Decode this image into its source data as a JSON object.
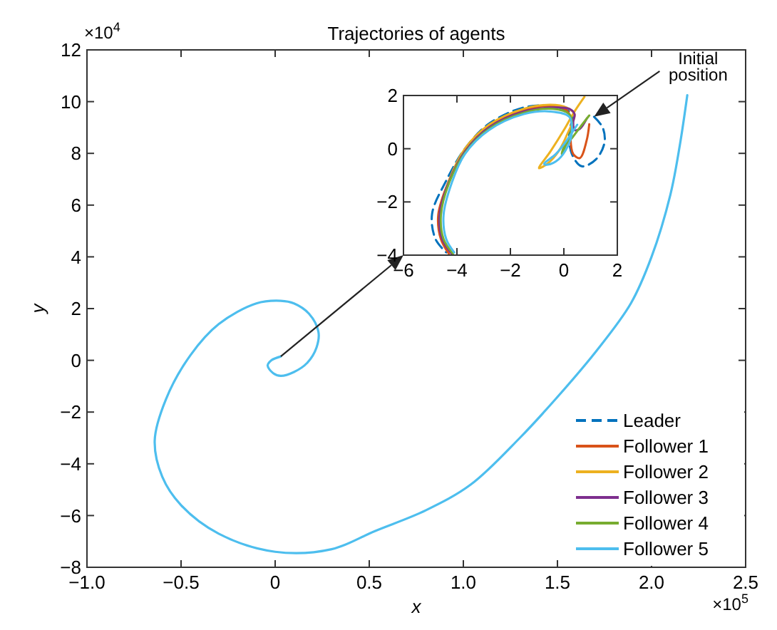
{
  "chart_data": [
    {
      "type": "line",
      "title": "Trajectories of agents",
      "xlabel": "x",
      "ylabel": "y",
      "xlim": [
        -1,
        2.5
      ],
      "xticks": [
        {
          "value": -1,
          "label": "−1.0"
        },
        {
          "value": -0.5,
          "label": "−0.5"
        },
        0,
        0.5,
        {
          "value": 1,
          "label": "1.0"
        },
        1.5,
        {
          "value": 2,
          "label": "2.0"
        },
        2.5
      ],
      "ylim": [
        -8,
        12
      ],
      "yticks": [
        {
          "value": -8,
          "label": "−8"
        },
        {
          "value": -6,
          "label": "−6"
        },
        {
          "value": -4,
          "label": "−4"
        },
        {
          "value": -2,
          "label": "−2"
        },
        0,
        2,
        4,
        6,
        8,
        10,
        12
      ],
      "annotations": [
        "×10$^{4}$",
        "×10$^{5}$"
      ],
      "legend": "bottom right",
      "grid": false,
      "x": [
        0.03,
        -0.02,
        -0.04,
        -0.01,
        0.03,
        0.1,
        0.17,
        0.22,
        0.23,
        0.18,
        0.1,
        0.03,
        -0.1,
        -0.3,
        -0.45,
        -0.58,
        -0.64,
        -0.6,
        -0.5,
        -0.3,
        0,
        0.3,
        0.53,
        0.8,
        1.04,
        1.3,
        1.49,
        1.7,
        1.89,
        2.0,
        2.1,
        2.15,
        2.19
      ],
      "series": [
        {
          "name": "Leader",
          "color": "#0072bd",
          "line_style": "dashed",
          "values": [
            null,
            null,
            null,
            null,
            null,
            null,
            null,
            null,
            null,
            null,
            null,
            null,
            null,
            null,
            null,
            null,
            null,
            null,
            null,
            null,
            null,
            null,
            null,
            null,
            null,
            null,
            null,
            null,
            null,
            null,
            null,
            null,
            null
          ]
        },
        {
          "name": "Follower 1",
          "color": "#d95319",
          "line_style": "solid",
          "values": [
            null,
            null,
            null,
            null,
            null,
            null,
            null,
            null,
            null,
            null,
            null,
            null,
            null,
            null,
            null,
            null,
            null,
            null,
            null,
            null,
            null,
            null,
            null,
            null,
            null,
            null,
            null,
            null,
            null,
            null,
            null,
            null,
            null
          ]
        },
        {
          "name": "Follower 2",
          "color": "#edb120",
          "line_style": "solid",
          "values": [
            null,
            null,
            null,
            null,
            null,
            null,
            null,
            null,
            null,
            null,
            null,
            null,
            null,
            null,
            null,
            null,
            null,
            null,
            null,
            null,
            null,
            null,
            null,
            null,
            null,
            null,
            null,
            null,
            null,
            null,
            null,
            null,
            null
          ]
        },
        {
          "name": "Follower 3",
          "color": "#7e2f8e",
          "line_style": "solid",
          "values": [
            null,
            null,
            null,
            null,
            null,
            null,
            null,
            null,
            null,
            null,
            null,
            null,
            null,
            null,
            null,
            null,
            null,
            null,
            null,
            null,
            null,
            null,
            null,
            null,
            null,
            null,
            null,
            null,
            null,
            null,
            null,
            null,
            null
          ]
        },
        {
          "name": "Follower 4",
          "color": "#77ac30",
          "line_style": "solid",
          "values": [
            null,
            null,
            null,
            null,
            null,
            null,
            null,
            null,
            null,
            null,
            null,
            null,
            null,
            null,
            null,
            null,
            null,
            null,
            null,
            null,
            null,
            null,
            null,
            null,
            null,
            null,
            null,
            null,
            null,
            null,
            null,
            null,
            null
          ]
        },
        {
          "name": "Follower 5",
          "color": "#4dbeee",
          "line_style": "solid",
          "values": [
            0.15,
            0.0,
            -0.2,
            -0.5,
            -0.6,
            -0.45,
            -0.1,
            0.5,
            1.1,
            1.8,
            2.2,
            2.3,
            2.2,
            1.4,
            0.2,
            -1.5,
            -3.1,
            -4.5,
            -5.6,
            -6.7,
            -7.4,
            -7.3,
            -6.6,
            -5.8,
            -4.8,
            -3.0,
            -1.5,
            0.3,
            2.2,
            4.0,
            6.4,
            8.3,
            10.25
          ]
        }
      ]
    },
    {
      "type": "line",
      "xlim": [
        -6,
        2
      ],
      "xticks": [
        {
          "value": -6,
          "label": "−6"
        },
        {
          "value": -4,
          "label": "−4"
        },
        {
          "value": -2,
          "label": "−2"
        },
        0,
        2
      ],
      "ylim": [
        -4,
        2
      ],
      "yticks": [
        {
          "value": -4,
          "label": "−4"
        },
        {
          "value": -2,
          "label": "−2"
        },
        0,
        2
      ],
      "annotations": [
        "Initial\nposition"
      ],
      "legend": false,
      "grid": false,
      "series": [
        {
          "color": "#0072bd",
          "line_style": "dashed",
          "x": [
            1.13,
            1.45,
            1.52,
            1.2,
            0.67,
            0.3,
            0.2,
            0.3,
            -0.5,
            -1.5,
            -2.8,
            -3.7,
            -4.4,
            -4.93,
            -4.8,
            -4.4
          ],
          "values": [
            1.2,
            0.8,
            0.23,
            -0.4,
            -0.66,
            -0.2,
            0.6,
            1.3,
            1.6,
            1.55,
            0.94,
            0.0,
            -1.2,
            -2.45,
            -3.4,
            -3.9
          ]
        },
        {
          "color": "#d95319",
          "x": [
            0.95,
            0.85,
            0.6,
            0.35,
            0.25,
            0.3,
            0.1,
            -0.5,
            -1.5,
            -2.8,
            -3.7,
            -4.3,
            -4.7,
            -4.6,
            -4.3
          ],
          "values": [
            0.92,
            0.3,
            -0.35,
            -0.2,
            0.4,
            1.0,
            1.45,
            1.6,
            1.45,
            0.85,
            -0.05,
            -1.2,
            -2.5,
            -3.4,
            -3.95
          ]
        },
        {
          "color": "#edb120",
          "x": [
            0.77,
            0.4,
            0.0,
            -0.5,
            -0.93,
            -0.6,
            -0.2,
            0.15,
            0.4,
            0.1,
            -0.5,
            -1.5,
            -2.8,
            -3.7,
            -4.3,
            -4.65
          ],
          "values": [
            1.95,
            1.4,
            0.7,
            -0.1,
            -0.73,
            -0.55,
            -0.1,
            0.6,
            1.3,
            1.55,
            1.65,
            1.5,
            0.9,
            0.0,
            -1.2,
            -2.5
          ]
        },
        {
          "color": "#7e2f8e",
          "x": [
            0.86,
            0.6,
            0.4,
            0.35,
            0.4,
            0.2,
            -0.4,
            -1.5,
            -2.8,
            -3.7,
            -4.3,
            -4.65,
            -4.55,
            -4.2
          ],
          "values": [
            1.14,
            0.75,
            0.7,
            1.0,
            1.3,
            1.5,
            1.55,
            1.4,
            0.8,
            -0.1,
            -1.25,
            -2.5,
            -3.4,
            -3.95
          ]
        },
        {
          "color": "#77ac30",
          "x": [
            0.95,
            0.6,
            0.3,
            0.0,
            -0.08,
            0.1,
            0.3,
            0.2,
            -0.4,
            -1.5,
            -2.8,
            -3.7,
            -4.3,
            -4.6,
            -4.5,
            -4.15
          ],
          "values": [
            1.25,
            0.8,
            0.4,
            0.05,
            -0.2,
            0.2,
            0.8,
            1.3,
            1.5,
            1.35,
            0.75,
            -0.15,
            -1.3,
            -2.5,
            -3.4,
            -3.95
          ]
        },
        {
          "color": "#4dbeee",
          "x": [
            0.5,
            0.1,
            -0.3,
            -0.74,
            -0.6,
            -0.2,
            0.15,
            0.3,
            0.2,
            -0.5,
            -1.5,
            -2.8,
            -3.7,
            -4.2,
            -4.5,
            -4.4,
            -4.1
          ],
          "values": [
            0.9,
            0.3,
            -0.2,
            -0.57,
            -0.6,
            -0.4,
            0.1,
            0.6,
            1.2,
            1.4,
            1.3,
            0.7,
            -0.2,
            -1.3,
            -2.5,
            -3.4,
            -3.9
          ]
        }
      ]
    }
  ]
}
